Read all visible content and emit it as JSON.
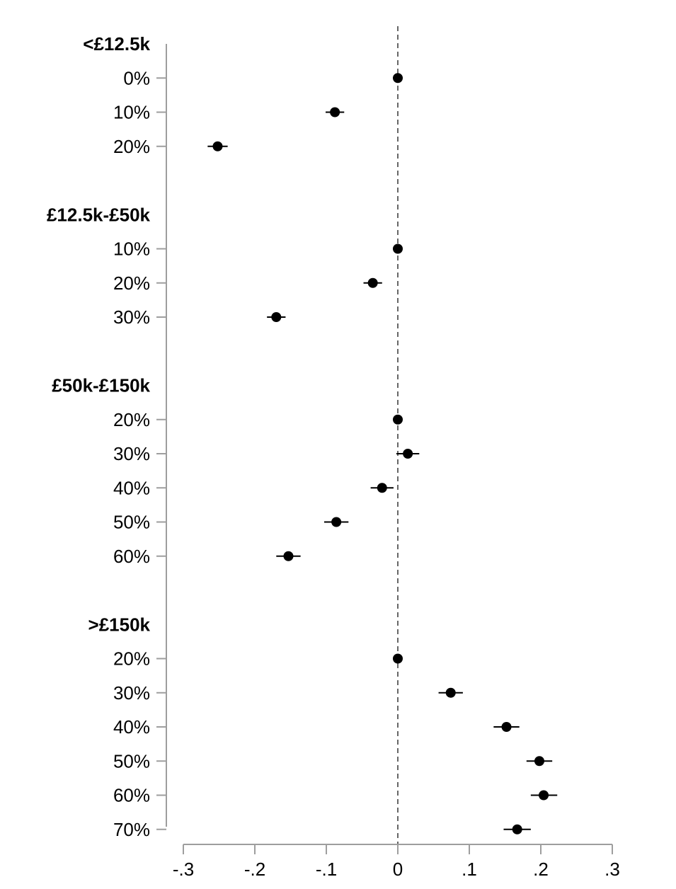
{
  "chart_data": {
    "type": "scatter",
    "title": "",
    "xlabel": "",
    "ylabel": "",
    "xlim": [
      -0.3,
      0.3
    ],
    "x_ticks": [
      -0.3,
      -0.2,
      -0.1,
      0,
      0.1,
      0.2,
      0.3
    ],
    "x_tick_labels": [
      "-.3",
      "-.2",
      "-.1",
      "0",
      ".1",
      ".2",
      ".3"
    ],
    "reference_line": {
      "x": 0,
      "style": "dashed",
      "color": "#666666"
    },
    "marker_color": "#000000",
    "groups": [
      {
        "label": "<£12.5k",
        "rows": [
          {
            "label": "0%",
            "estimate": 0.0,
            "ci": [
              0.0,
              0.0
            ]
          },
          {
            "label": "10%",
            "estimate": -0.088,
            "ci": [
              -0.101,
              -0.075
            ]
          },
          {
            "label": "20%",
            "estimate": -0.252,
            "ci": [
              -0.266,
              -0.238
            ]
          }
        ]
      },
      {
        "label": "£12.5k-£50k",
        "rows": [
          {
            "label": "10%",
            "estimate": 0.0,
            "ci": [
              0.0,
              0.0
            ]
          },
          {
            "label": "20%",
            "estimate": -0.035,
            "ci": [
              -0.048,
              -0.022
            ]
          },
          {
            "label": "30%",
            "estimate": -0.17,
            "ci": [
              -0.183,
              -0.157
            ]
          }
        ]
      },
      {
        "label": "£50k-£150k",
        "rows": [
          {
            "label": "20%",
            "estimate": 0.0,
            "ci": [
              0.0,
              0.0
            ]
          },
          {
            "label": "30%",
            "estimate": 0.014,
            "ci": [
              -0.002,
              0.03
            ]
          },
          {
            "label": "40%",
            "estimate": -0.022,
            "ci": [
              -0.038,
              -0.006
            ]
          },
          {
            "label": "50%",
            "estimate": -0.086,
            "ci": [
              -0.103,
              -0.069
            ]
          },
          {
            "label": "60%",
            "estimate": -0.153,
            "ci": [
              -0.17,
              -0.136
            ]
          }
        ]
      },
      {
        "label": ">£150k",
        "rows": [
          {
            "label": "20%",
            "estimate": 0.0,
            "ci": [
              0.0,
              0.0
            ]
          },
          {
            "label": "30%",
            "estimate": 0.074,
            "ci": [
              0.057,
              0.091
            ]
          },
          {
            "label": "40%",
            "estimate": 0.152,
            "ci": [
              0.134,
              0.17
            ]
          },
          {
            "label": "50%",
            "estimate": 0.198,
            "ci": [
              0.18,
              0.216
            ]
          },
          {
            "label": "60%",
            "estimate": 0.204,
            "ci": [
              0.186,
              0.223
            ]
          },
          {
            "label": "70%",
            "estimate": 0.167,
            "ci": [
              0.148,
              0.186
            ]
          }
        ]
      }
    ]
  }
}
